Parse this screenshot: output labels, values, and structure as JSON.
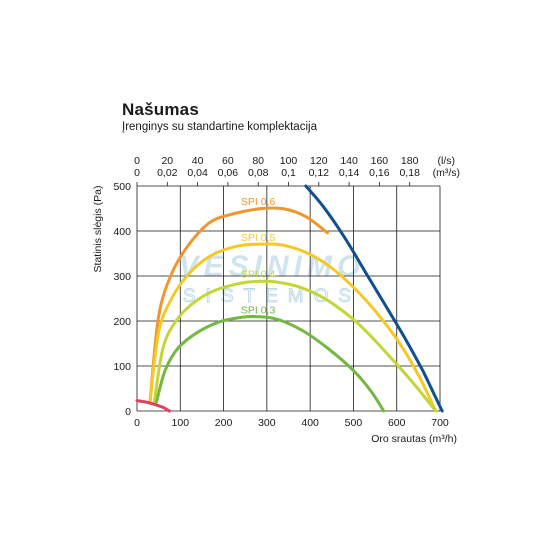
{
  "header": {
    "title": "Našumas",
    "subtitle": "Įrenginys su standartine komplektacija"
  },
  "watermark": {
    "line1": "VĖSINIMO",
    "line2": "SISTEMOS"
  },
  "chart_data": {
    "type": "line",
    "ylabel": "Statinis slėgis (Pa)",
    "xlabel": "Oro srautas (m³/h)",
    "xlim": [
      0,
      700
    ],
    "ylim": [
      0,
      500
    ],
    "x_ticks": [
      0,
      100,
      200,
      300,
      400,
      500,
      600,
      700
    ],
    "y_ticks": [
      0,
      100,
      200,
      300,
      400,
      500
    ],
    "top_axis_ls": {
      "unit": "(l/s)",
      "ticks": [
        0,
        20,
        40,
        60,
        80,
        100,
        120,
        140,
        160,
        180
      ],
      "labels": [
        "0",
        "20",
        "40",
        "60",
        "80",
        "100",
        "120",
        "140",
        "160",
        "180"
      ]
    },
    "top_axis_m3s": {
      "unit": "(m³/s)",
      "ticks": [
        0,
        0.02,
        0.04,
        0.06,
        0.08,
        0.1,
        0.12,
        0.14,
        0.16,
        0.18
      ],
      "labels": [
        "0",
        "0,02",
        "0,04",
        "0,06",
        "0,08",
        "0,1",
        "0,12",
        "0,14",
        "0,16",
        "0,18"
      ]
    },
    "grid": true,
    "series": [
      {
        "name": "SPI 0,6",
        "color": "#f0962f",
        "points": [
          [
            30,
            20
          ],
          [
            50,
            210
          ],
          [
            80,
            305
          ],
          [
            120,
            370
          ],
          [
            170,
            420
          ],
          [
            230,
            440
          ],
          [
            290,
            450
          ],
          [
            340,
            449
          ],
          [
            390,
            432
          ],
          [
            440,
            396
          ]
        ]
      },
      {
        "name": "SPI 0,5",
        "color": "#f5c827",
        "points": [
          [
            30,
            20
          ],
          [
            50,
            175
          ],
          [
            80,
            250
          ],
          [
            120,
            305
          ],
          [
            170,
            345
          ],
          [
            230,
            366
          ],
          [
            290,
            371
          ],
          [
            340,
            368
          ],
          [
            400,
            348
          ],
          [
            460,
            310
          ],
          [
            530,
            245
          ],
          [
            600,
            160
          ],
          [
            650,
            80
          ],
          [
            690,
            0
          ]
        ]
      },
      {
        "name": "SPI 0,4",
        "color": "#c4d637",
        "points": [
          [
            40,
            20
          ],
          [
            60,
            140
          ],
          [
            90,
            200
          ],
          [
            130,
            240
          ],
          [
            180,
            268
          ],
          [
            240,
            284
          ],
          [
            280,
            288
          ],
          [
            320,
            287
          ],
          [
            380,
            274
          ],
          [
            440,
            246
          ],
          [
            510,
            195
          ],
          [
            580,
            125
          ],
          [
            640,
            60
          ],
          [
            690,
            0
          ]
        ]
      },
      {
        "name": "SPI 0,3",
        "color": "#72b843",
        "points": [
          [
            45,
            20
          ],
          [
            65,
            90
          ],
          [
            95,
            140
          ],
          [
            140,
            175
          ],
          [
            190,
            198
          ],
          [
            240,
            208
          ],
          [
            270,
            210
          ],
          [
            320,
            205
          ],
          [
            380,
            180
          ],
          [
            440,
            140
          ],
          [
            500,
            90
          ],
          [
            540,
            45
          ],
          [
            570,
            0
          ]
        ]
      },
      {
        "name": "",
        "color": "#0f4f92",
        "points": [
          [
            390,
            500
          ],
          [
            430,
            455
          ],
          [
            480,
            385
          ],
          [
            530,
            305
          ],
          [
            580,
            225
          ],
          [
            620,
            160
          ],
          [
            660,
            90
          ],
          [
            690,
            30
          ],
          [
            705,
            0
          ]
        ]
      },
      {
        "name": "",
        "color": "#e0405e",
        "points": [
          [
            0,
            23
          ],
          [
            20,
            20
          ],
          [
            40,
            15
          ],
          [
            60,
            8
          ],
          [
            75,
            0
          ]
        ]
      }
    ],
    "series_labels": [
      {
        "text": "SPI 0,6",
        "color": "#f0962f",
        "x": 240,
        "y": 458
      },
      {
        "text": "SPI 0,5",
        "color": "#f5c827",
        "x": 240,
        "y": 378
      },
      {
        "text": "SPI 0,4",
        "color": "#c4d637",
        "x": 240,
        "y": 297
      },
      {
        "text": "SPI 0,3",
        "color": "#72b843",
        "x": 240,
        "y": 217
      }
    ]
  }
}
